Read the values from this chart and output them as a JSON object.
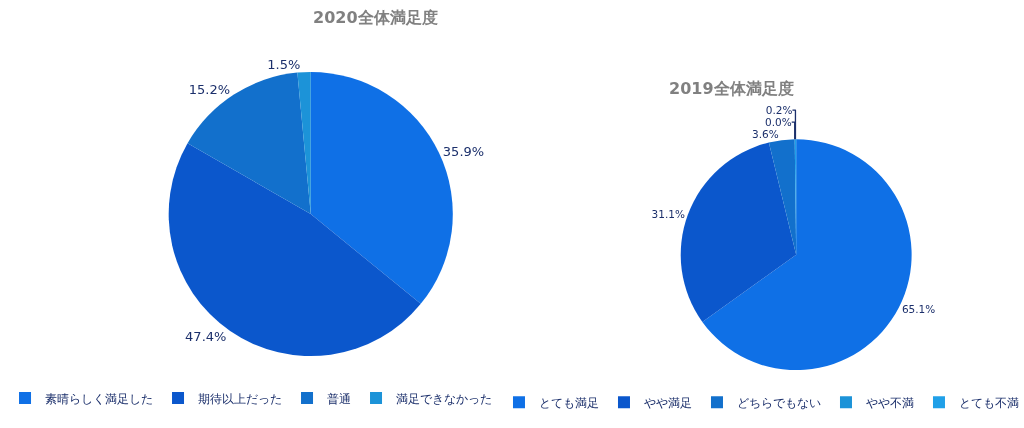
{
  "chart_data": [
    {
      "type": "pie",
      "title": "2020全体満足度",
      "categories": [
        "素晴らしく満足した",
        "期待以上だった",
        "普通",
        "満足できなかった"
      ],
      "values": [
        35.9,
        47.4,
        15.2,
        1.5
      ],
      "value_labels": [
        "35.9%",
        "47.4%",
        "15.2%",
        "1.5%"
      ],
      "colors": [
        "#0f70e6",
        "#0b57cc",
        "#1270cc",
        "#1c93d8"
      ],
      "legend": "bottom"
    },
    {
      "type": "pie",
      "title": "2019全体満足度",
      "categories": [
        "とても満足",
        "やや満足",
        "どちらでもない",
        "やや不満",
        "とても不満"
      ],
      "values": [
        65.1,
        31.1,
        3.6,
        0.0,
        0.2
      ],
      "value_labels": [
        "65.1%",
        "31.1%",
        "3.6%",
        "0.0%",
        "0.2%"
      ],
      "colors": [
        "#0f70e6",
        "#0b57cc",
        "#1270cc",
        "#1c93d8",
        "#20a0e8"
      ],
      "legend": "bottom"
    }
  ]
}
